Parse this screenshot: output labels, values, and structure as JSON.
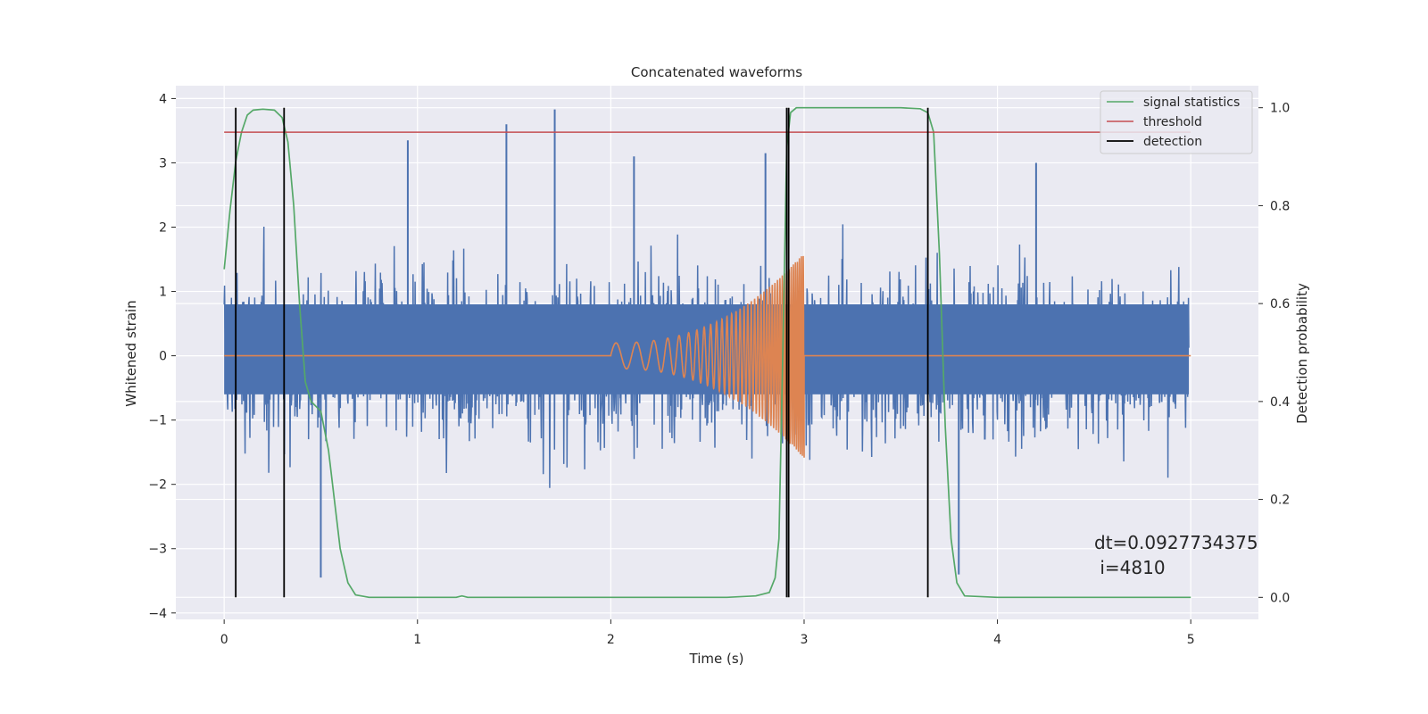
{
  "chart_data": {
    "type": "line",
    "title": "Concatenated waveforms",
    "xlabel": "Time (s)",
    "ylabel": "Whitened strain",
    "y2label": "Detection probability",
    "xlim": [
      -0.25,
      5.35
    ],
    "ylim": [
      -4.1,
      4.2
    ],
    "y2lim": [
      -0.045,
      1.045
    ],
    "x_ticks": [
      0,
      1,
      2,
      3,
      4,
      5
    ],
    "y_ticks": [
      -4,
      -3,
      -2,
      -1,
      0,
      1,
      2,
      3,
      4
    ],
    "y2_ticks": [
      0.0,
      0.2,
      0.4,
      0.6,
      0.8,
      1.0
    ],
    "x_tick_labels": [
      "0",
      "1",
      "2",
      "3",
      "4",
      "5"
    ],
    "y_tick_labels": [
      "−4",
      "−3",
      "−2",
      "−1",
      "0",
      "1",
      "2",
      "3",
      "4"
    ],
    "y2_tick_labels": [
      "0.0",
      "0.2",
      "0.4",
      "0.6",
      "0.8",
      "1.0"
    ],
    "grid": true,
    "legend_position": "top-right",
    "legend": [
      {
        "label": "signal statistics",
        "color": "#55a868"
      },
      {
        "label": "threshold",
        "color": "#c44e52"
      },
      {
        "label": "detection",
        "color": "#000000"
      }
    ],
    "strain_noise": {
      "color": "#4c72b0",
      "x_range": [
        0,
        4.99
      ],
      "band": [
        -0.6,
        0.8
      ],
      "typical_amplitude": 2.2,
      "max": 3.85,
      "min": -3.5
    },
    "chirp": {
      "color": "#dd8452",
      "x_start": 2.0,
      "x_end": 3.0,
      "amplitude_start": 0.2,
      "amplitude_end": 1.6,
      "baseline": 0.0
    },
    "signal_statistics": {
      "color": "#55a868",
      "axis": "right",
      "x": [
        0.0,
        0.03,
        0.06,
        0.09,
        0.12,
        0.15,
        0.2,
        0.26,
        0.3,
        0.33,
        0.36,
        0.39,
        0.42,
        0.45,
        0.5,
        0.54,
        0.57,
        0.6,
        0.64,
        0.68,
        0.75,
        1.2,
        1.23,
        1.26,
        1.35,
        2.0,
        2.6,
        2.75,
        2.82,
        2.85,
        2.87,
        2.89,
        2.91,
        2.93,
        2.96,
        3.0,
        3.5,
        3.6,
        3.64,
        3.67,
        3.7,
        3.73,
        3.76,
        3.79,
        3.83,
        4.0,
        5.0
      ],
      "values": [
        0.67,
        0.79,
        0.89,
        0.95,
        0.985,
        0.995,
        0.997,
        0.995,
        0.98,
        0.93,
        0.8,
        0.6,
        0.44,
        0.4,
        0.38,
        0.3,
        0.2,
        0.1,
        0.03,
        0.005,
        0.0,
        0.0,
        0.003,
        0.0,
        0.0,
        0.0,
        0.0,
        0.003,
        0.01,
        0.04,
        0.12,
        0.5,
        0.92,
        0.99,
        1.0,
        1.0,
        1.0,
        0.998,
        0.99,
        0.95,
        0.7,
        0.35,
        0.12,
        0.03,
        0.003,
        0.0,
        0.0
      ]
    },
    "threshold": {
      "color": "#c44e52",
      "axis": "right",
      "value": 0.95,
      "x_range": [
        0,
        5
      ]
    },
    "detections": {
      "color": "#000000",
      "axis": "right",
      "x": [
        0.06,
        0.31,
        2.91,
        2.92,
        3.64
      ],
      "range": [
        0.0,
        1.0
      ]
    },
    "annotation": {
      "line1": "dt=0.0927734375",
      "line2": " i=4810",
      "x": 4.5,
      "y": -2.83
    }
  }
}
